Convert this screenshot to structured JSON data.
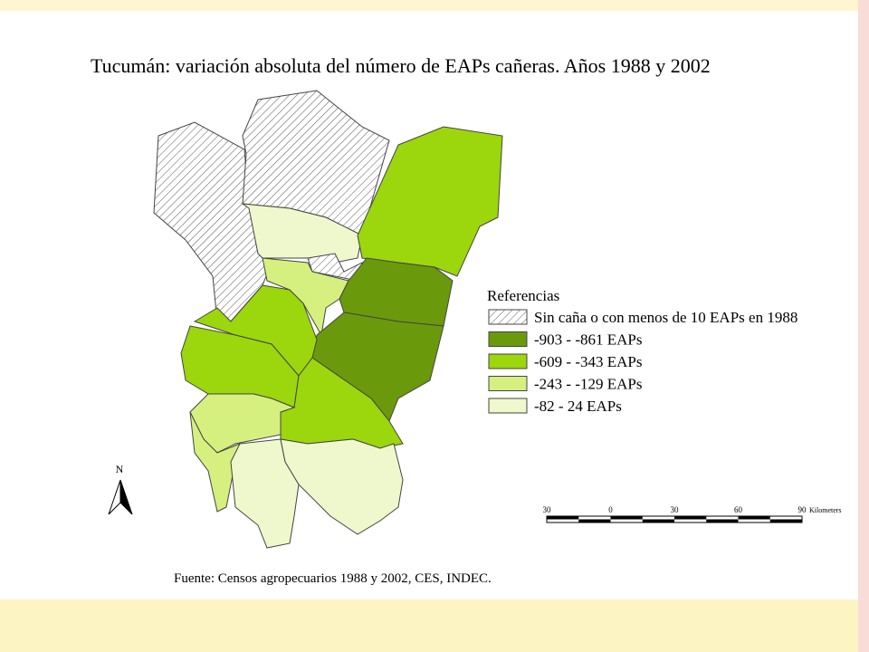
{
  "title": "Tucumán: variación absoluta del número de EAPs cañeras. Años 1988 y 2002",
  "legend": {
    "title": "Referencias",
    "items": [
      {
        "label": "Sin caña o con menos de 10 EAPs en 1988",
        "color": "#ffffff",
        "hatched": true
      },
      {
        "label": "-903 - -861 EAPs",
        "color": "#6a9a0c"
      },
      {
        "label": "-609 - -343 EAPs",
        "color": "#9cd60c"
      },
      {
        "label": "-243 - -129 EAPs",
        "color": "#d6f080"
      },
      {
        "label": "-82 - 24 EAPs",
        "color": "#eef8cc"
      }
    ]
  },
  "north": "N",
  "scale": {
    "labels": [
      "30",
      "0",
      "30",
      "60",
      "90"
    ],
    "unit": "Kilometers"
  },
  "source": "Fuente: Censos agropecuarios 1988 y 2002, CES, INDEC."
}
